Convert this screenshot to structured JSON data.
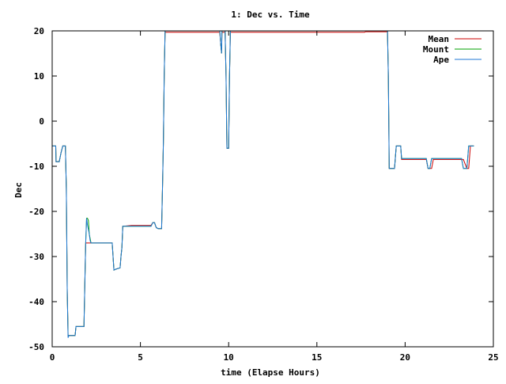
{
  "chart_data": {
    "type": "line",
    "title": "1: Dec vs. Time",
    "xlabel": "time (Elapse Hours)",
    "ylabel": "Dec",
    "xlim": [
      0,
      25
    ],
    "ylim": [
      -50,
      20
    ],
    "xticks": [
      0,
      5,
      10,
      15,
      20,
      25
    ],
    "yticks": [
      -50,
      -40,
      -30,
      -20,
      -10,
      0,
      10,
      20
    ],
    "grid": false,
    "legend_position": "top-right",
    "series": [
      {
        "name": "Mean",
        "color": "#cc0000",
        "x": [
          0,
          0.2,
          0.22,
          0.4,
          0.5,
          0.6,
          0.75,
          0.8,
          0.85,
          0.9,
          0.95,
          1.0,
          1.05,
          1.3,
          1.35,
          1.8,
          1.85,
          1.9,
          1.95,
          2.0,
          2.1,
          2.5,
          3.0,
          3.2,
          3.3,
          3.4,
          3.5,
          3.6,
          3.85,
          3.9,
          3.95,
          4.0,
          4.5,
          4.9,
          5.0,
          5.5,
          5.6,
          5.7,
          5.8,
          5.85,
          5.9,
          6.0,
          6.1,
          6.2,
          6.25,
          6.3,
          6.35,
          6.4,
          9.5,
          9.55,
          9.6,
          9.62,
          9.8,
          9.85,
          9.9,
          10.0,
          10.05,
          10.1,
          10.15,
          17.7,
          17.75,
          18.9,
          19.0,
          19.05,
          19.1,
          19.2,
          19.4,
          19.5,
          19.6,
          19.75,
          19.8,
          19.9,
          21.2,
          21.3,
          21.4,
          21.5,
          21.6,
          21.7,
          22.7,
          22.8,
          23.0,
          23.2,
          23.3,
          23.5,
          23.6,
          23.7,
          23.8,
          23.9
        ],
        "values": [
          -5.5,
          -5.5,
          -9,
          -9,
          -7,
          -5.5,
          -5.5,
          -15,
          -37,
          -47.5,
          -47.5,
          -47.5,
          -47.5,
          -47.5,
          -45.5,
          -45.5,
          -36,
          -27,
          -27,
          -27,
          -27,
          -27,
          -27,
          -27,
          -27,
          -27,
          -33,
          -32.8,
          -32.5,
          -30,
          -28,
          -23.3,
          -23.1,
          -23.1,
          -23.1,
          -23.1,
          -23.1,
          -22.5,
          -22.5,
          -23.1,
          -23.6,
          -23.8,
          -23.8,
          -23.8,
          -15,
          -5,
          10,
          19.7,
          19.7,
          17,
          15,
          19.7,
          19.7,
          10,
          -6,
          -6,
          10,
          19.7,
          19.7,
          19.7,
          19.8,
          19.8,
          19.8,
          10,
          -10.5,
          -10.5,
          -10.5,
          -5.5,
          -5.5,
          -5.5,
          -8.5,
          -8.5,
          -8.5,
          -10.5,
          -10.5,
          -10.5,
          -8.5,
          -8.5,
          -8.5,
          -8.5,
          -8.5,
          -8.5,
          -8.5,
          -10.5,
          -10.5,
          -5.5,
          -5.5,
          -5.5
        ]
      },
      {
        "name": "Mount",
        "color": "#00a000",
        "x": [
          0,
          0.2,
          0.22,
          0.4,
          0.5,
          0.6,
          0.75,
          0.8,
          0.85,
          0.9,
          0.95,
          1.3,
          1.35,
          1.8,
          1.85,
          1.9,
          1.95,
          2.0,
          2.05,
          2.1,
          2.15,
          2.2,
          2.25,
          2.5,
          3.0,
          3.3,
          3.4,
          3.5,
          3.6,
          3.85,
          3.9,
          3.95,
          4.0,
          4.5,
          5.0,
          5.5,
          5.6,
          5.7,
          5.8,
          5.85,
          5.9,
          6.0,
          6.2,
          6.25,
          6.3,
          6.35,
          6.4,
          9.5,
          9.55,
          9.6,
          9.62,
          9.8,
          9.85,
          9.9,
          10.0,
          10.05,
          10.1,
          10.15,
          18.9,
          19.0,
          19.05,
          19.1,
          19.4,
          19.5,
          19.6,
          19.75,
          19.8,
          21.2,
          21.3,
          21.4,
          21.5,
          21.6,
          23.2,
          23.3,
          23.5,
          23.6,
          23.7,
          23.9
        ],
        "values": [
          -5.5,
          -5.5,
          -9,
          -9,
          -7,
          -5.5,
          -5.5,
          -15,
          -37,
          -47.5,
          -47.5,
          -47.5,
          -45.5,
          -45.5,
          -36,
          -27,
          -21.5,
          -21.5,
          -22,
          -25,
          -26,
          -27,
          -27,
          -27,
          -27,
          -27,
          -27,
          -33,
          -32.8,
          -32.5,
          -30,
          -28,
          -23.3,
          -23.3,
          -23.3,
          -23.3,
          -23.3,
          -22.5,
          -22.5,
          -23.1,
          -23.6,
          -23.8,
          -23.8,
          -15,
          -5,
          10,
          20,
          20,
          17,
          15,
          20,
          20,
          10,
          -6,
          -6,
          10,
          20,
          20,
          20,
          20,
          10,
          -10.5,
          -10.5,
          -5.5,
          -5.5,
          -5.5,
          -8.3,
          -8.3,
          -10.5,
          -10.5,
          -8.3,
          -8.3,
          -8.3,
          -10.5,
          -10.5,
          -5.5,
          -5.5,
          -5.5
        ]
      },
      {
        "name": "Ape",
        "color": "#1f77d4",
        "x": [
          0,
          0.2,
          0.22,
          0.4,
          0.5,
          0.6,
          0.75,
          0.8,
          0.85,
          0.9,
          0.95,
          1.3,
          1.35,
          1.8,
          1.85,
          1.9,
          1.95,
          2.0,
          2.05,
          2.1,
          2.15,
          2.2,
          2.25,
          2.5,
          3.0,
          3.3,
          3.4,
          3.5,
          3.6,
          3.85,
          3.9,
          3.95,
          4.0,
          4.5,
          5.0,
          5.5,
          5.6,
          5.7,
          5.8,
          5.85,
          5.9,
          6.0,
          6.2,
          6.25,
          6.3,
          6.35,
          6.4,
          9.5,
          9.55,
          9.6,
          9.62,
          9.8,
          9.85,
          9.9,
          10.0,
          10.05,
          10.1,
          10.15,
          18.9,
          19.0,
          19.05,
          19.1,
          19.4,
          19.5,
          19.6,
          19.75,
          19.8,
          21.2,
          21.3,
          21.4,
          21.5,
          21.6,
          23.2,
          23.3,
          23.5,
          23.6,
          23.7,
          23.9
        ],
        "values": [
          -5.5,
          -5.5,
          -9,
          -9,
          -7,
          -5.5,
          -5.5,
          -15,
          -37,
          -48,
          -47.5,
          -47.5,
          -45.5,
          -45.5,
          -36,
          -27,
          -21.5,
          -23,
          -24,
          -25,
          -26.5,
          -27,
          -27,
          -27,
          -27,
          -27,
          -27,
          -33,
          -32.8,
          -32.5,
          -30,
          -28,
          -23.3,
          -23.3,
          -23.3,
          -23.3,
          -23.3,
          -22.5,
          -22.5,
          -23.1,
          -23.6,
          -23.8,
          -23.8,
          -15,
          -5,
          10,
          20,
          20,
          17,
          15,
          20,
          20,
          10,
          -6,
          -6,
          10,
          20,
          20,
          20,
          20,
          10,
          -10.5,
          -10.5,
          -5.5,
          -5.5,
          -5.5,
          -8.3,
          -8.3,
          -10.5,
          -10.5,
          -8.3,
          -8.3,
          -8.3,
          -10.5,
          -10.5,
          -5.5,
          -5.5,
          -5.5
        ]
      }
    ]
  }
}
